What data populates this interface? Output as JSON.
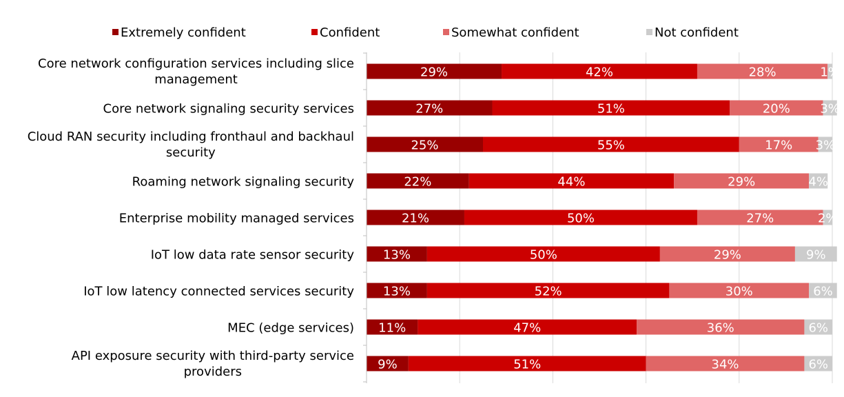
{
  "chart_data": {
    "type": "bar",
    "orientation": "horizontal",
    "stacked": true,
    "stack_mode": "percent",
    "xlim": [
      0,
      100
    ],
    "grid": true,
    "legend_position": "top",
    "categories": [
      "Core network configuration services including slice management",
      "Core network signaling security services",
      "Cloud RAN security including fronthaul and backhaul security",
      "Roaming network signaling security",
      "Enterprise mobility managed services",
      "IoT low data rate sensor security",
      "IoT low latency connected services security",
      "MEC (edge services)",
      "API exposure security with third-party service providers"
    ],
    "category_lines": [
      [
        "Core network configuration services including slice",
        "management"
      ],
      [
        "Core network signaling security services"
      ],
      [
        "Cloud RAN security including fronthaul and backhaul",
        "security"
      ],
      [
        "Roaming network signaling security"
      ],
      [
        "Enterprise mobility managed services"
      ],
      [
        "IoT low data rate sensor security"
      ],
      [
        "IoT low latency connected services security"
      ],
      [
        "MEC (edge services)"
      ],
      [
        "API exposure security with third-party service",
        "providers"
      ]
    ],
    "series": [
      {
        "name": "Extremely confident",
        "color": "#990000",
        "values": [
          29,
          27,
          25,
          22,
          21,
          13,
          13,
          11,
          9
        ]
      },
      {
        "name": "Confident",
        "color": "#cc0000",
        "values": [
          42,
          51,
          55,
          44,
          50,
          50,
          52,
          47,
          51
        ]
      },
      {
        "name": "Somewhat confident",
        "color": "#e06666",
        "values": [
          28,
          20,
          17,
          29,
          27,
          29,
          30,
          36,
          34
        ]
      },
      {
        "name": "Not confident",
        "color": "#cccccc",
        "values": [
          1,
          3,
          3,
          4,
          2,
          9,
          6,
          6,
          6
        ]
      }
    ],
    "value_suffix": "%"
  }
}
